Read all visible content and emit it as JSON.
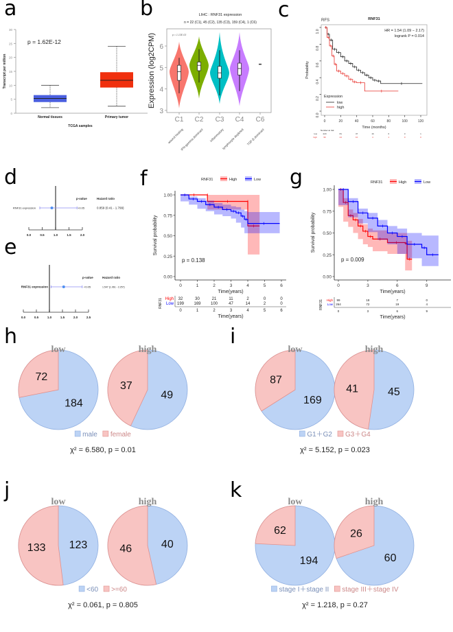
{
  "panel_labels": [
    "a",
    "b",
    "c",
    "d",
    "e",
    "f",
    "g",
    "h",
    "i",
    "j",
    "k"
  ],
  "chart_data": [
    {
      "panel": "a",
      "type": "box",
      "ylabel": "Transcript per million",
      "xlabel": "TCGA samples",
      "ylim": [
        0,
        30
      ],
      "yticks": [
        "0",
        "5",
        "10",
        "15",
        "20",
        "25",
        "30"
      ],
      "annotation": "p = 1.62E-12",
      "categories": [
        "Normal tissues",
        "Primary tumor"
      ],
      "boxes": [
        {
          "min": 2,
          "q1": 4,
          "median": 5.3,
          "q3": 6.5,
          "max": 10,
          "color": "#4a5fe0"
        },
        {
          "min": 2.5,
          "q1": 9.2,
          "median": 11.8,
          "q3": 14.7,
          "max": 24,
          "color": "#f0300e"
        }
      ]
    },
    {
      "panel": "b",
      "type": "violin",
      "title": "LIHC : RNF31 expression",
      "subtitle": "n = 22 (C1), 45 (C2), 135 (C3), 159 (C4), 1 (C6)",
      "annotation": "p = 1.13E-03",
      "ylabel": "Expression (log2CPM)",
      "ylim": [
        2.9,
        6.8
      ],
      "yticks": [
        "3",
        "4",
        "5",
        "6"
      ],
      "categories": [
        "C1",
        "C2",
        "C3",
        "C4",
        "C6"
      ],
      "sublabels": [
        "wound healing",
        "IFN-gamma dominant",
        "inflammatory",
        "lymphocyte depleted",
        "TGF-β dominant"
      ],
      "violins": [
        {
          "min": 3.1,
          "max": 6.2,
          "lo": 3.8,
          "q1": 4.4,
          "median": 4.8,
          "q3": 5.1,
          "hi": 5.45,
          "color": "#f8766d"
        },
        {
          "min": 3.55,
          "max": 6.45,
          "lo": 4.3,
          "q1": 4.85,
          "median": 5.1,
          "q3": 5.25,
          "hi": 5.85,
          "color": "#7cae00"
        },
        {
          "min": 3.3,
          "max": 6.65,
          "lo": 3.7,
          "q1": 4.5,
          "median": 4.75,
          "q3": 5.05,
          "hi": 5.8,
          "color": "#00bfc4"
        },
        {
          "min": 3.2,
          "max": 6.65,
          "lo": 3.9,
          "q1": 4.65,
          "median": 4.95,
          "q3": 5.2,
          "hi": 5.8,
          "color": "#c77cff"
        },
        {
          "min": 5.15,
          "max": 5.15,
          "lo": 5.15,
          "q1": 5.15,
          "median": 5.15,
          "q3": 5.15,
          "hi": 5.15,
          "color": "#333333"
        }
      ]
    },
    {
      "panel": "c",
      "type": "line",
      "subtitle": "RFS",
      "title": "RNF31",
      "xlabel": "Time (months)",
      "ylabel": "Probability",
      "xlim": [
        0,
        120
      ],
      "ylim": [
        0,
        1
      ],
      "xticks": [
        "0",
        "20",
        "40",
        "60",
        "80",
        "100",
        "120"
      ],
      "yticks": [
        "0.0",
        "0.2",
        "0.4",
        "0.6",
        "0.8",
        "1.0"
      ],
      "annotations": [
        "HR = 1.54 (1.09 − 2.17)",
        "logrank P = 0.014"
      ],
      "legend_title": "Expression",
      "series": [
        {
          "name": "low",
          "color": "#222222",
          "x": [
            0,
            3,
            6,
            10,
            15,
            20,
            25,
            30,
            35,
            40,
            45,
            50,
            55,
            60,
            65,
            70,
            122
          ],
          "y": [
            1,
            0.92,
            0.85,
            0.74,
            0.7,
            0.65,
            0.6,
            0.57,
            0.53,
            0.49,
            0.46,
            0.43,
            0.4,
            0.37,
            0.36,
            0.33,
            0.33
          ]
        },
        {
          "name": "high",
          "color": "#e8342f",
          "x": [
            0,
            3,
            6,
            9,
            12,
            15,
            20,
            25,
            30,
            35,
            40,
            50,
            92
          ],
          "y": [
            1,
            0.88,
            0.78,
            0.66,
            0.56,
            0.48,
            0.45,
            0.42,
            0.38,
            0.35,
            0.34,
            0.24,
            0.24
          ]
        }
      ],
      "risk_table": {
        "title": "Number at risk",
        "rows": [
          {
            "label": "low",
            "values": [
              "220",
              "81",
              "37",
              "16",
              "6",
              "3",
              "1"
            ]
          },
          {
            "label": "high",
            "values": [
              "96",
              "24",
              "10",
              "4",
              "1",
              "0",
              "0"
            ]
          }
        ]
      }
    },
    {
      "panel": "d",
      "type": "forest",
      "label": "RNF31 expression",
      "hr": 0.859,
      "ci": [
        0.41,
        1.799
      ],
      "xlim": [
        0,
        2
      ],
      "xticks": [
        "0.0",
        "0.5",
        "1.0",
        "1.5",
        "2.0"
      ],
      "pvalue_header": "p-value",
      "hr_header": "Hazard ratio",
      "pvalue": ">0.05",
      "hr_text": "0.859 (0.41 - 1.799)",
      "color": "#4f8ff0"
    },
    {
      "panel": "e",
      "type": "forest",
      "label": "RNF31 expression",
      "hr": 1.547,
      "ci": [
        1.061,
        2.257
      ],
      "xlim": [
        0,
        2.5
      ],
      "xticks": [
        "0.0",
        "0.5",
        "1.0",
        "1.5",
        "2.0",
        "2.5"
      ],
      "pvalue_header": "p-value",
      "hr_header": "Hazard ratio",
      "pvalue": "<0.05",
      "hr_text": "1.547 (1.061 - 2.257)",
      "color": "#4f8ff0"
    },
    {
      "panel": "f",
      "type": "line",
      "legend_title": "RNF31",
      "xlabel": "Time(years)",
      "ylabel": "Survival probability",
      "xlim": [
        0,
        6
      ],
      "ylim": [
        0,
        1
      ],
      "xticks": [
        "0",
        "1",
        "2",
        "3",
        "4",
        "5",
        "6"
      ],
      "yticks": [
        "0.00",
        "0.25",
        "0.50",
        "0.75",
        "1.00"
      ],
      "annotation": "p = 0.138",
      "series": [
        {
          "name": "High",
          "color": "#ff0000",
          "x": [
            0,
            1.6,
            1.6,
            4,
            4,
            4.7
          ],
          "y": [
            1,
            1,
            0.92,
            0.92,
            0.62,
            0.62
          ],
          "lower": [
            1,
            1,
            0.82,
            0.82,
            0.27,
            0.27
          ],
          "upper": [
            1,
            1,
            1,
            1,
            1,
            1
          ]
        },
        {
          "name": "Low",
          "color": "#0000ff",
          "x": [
            0,
            0.5,
            1,
            1.5,
            2,
            2.5,
            3,
            3.3,
            3.6,
            3.8,
            4,
            5.9
          ],
          "y": [
            1,
            0.95,
            0.92,
            0.88,
            0.85,
            0.82,
            0.8,
            0.78,
            0.74,
            0.7,
            0.65,
            0.65
          ],
          "lower": [
            1,
            0.92,
            0.88,
            0.83,
            0.8,
            0.76,
            0.74,
            0.71,
            0.66,
            0.6,
            0.53,
            0.53
          ],
          "upper": [
            1,
            0.98,
            0.96,
            0.93,
            0.9,
            0.88,
            0.86,
            0.85,
            0.82,
            0.8,
            0.79,
            0.79
          ]
        }
      ],
      "risk_table": {
        "title": "RNF31",
        "rows": [
          {
            "label": "High",
            "values": [
              "32",
              "30",
              "21",
              "11",
              "2",
              "0",
              "0"
            ]
          },
          {
            "label": "Low",
            "values": [
              "199",
              "169",
              "100",
              "47",
              "14",
              "2",
              "0"
            ]
          }
        ],
        "xlabel": "Time(years)"
      }
    },
    {
      "panel": "g",
      "type": "line",
      "legend_title": "RNF31",
      "xlabel": "Time(years)",
      "ylabel": "Survival probability",
      "xlim": [
        0,
        10
      ],
      "ylim": [
        0,
        1
      ],
      "xticks": [
        "0",
        "3",
        "6",
        "9"
      ],
      "yticks": [
        "0.00",
        "0.25",
        "0.50",
        "0.75",
        "1.00"
      ],
      "annotation": "p = 0.009",
      "series": [
        {
          "name": "High",
          "color": "#ff0000",
          "x": [
            0,
            0.5,
            1,
            1.5,
            2,
            2.5,
            3,
            3.5,
            5,
            6.8,
            7,
            7.5
          ],
          "y": [
            1,
            0.85,
            0.7,
            0.65,
            0.58,
            0.52,
            0.46,
            0.43,
            0.39,
            0.38,
            0.2,
            0.2
          ],
          "lower": [
            1,
            0.8,
            0.63,
            0.57,
            0.5,
            0.43,
            0.37,
            0.34,
            0.29,
            0.26,
            0.07,
            0.07
          ],
          "upper": [
            1,
            0.9,
            0.77,
            0.73,
            0.66,
            0.6,
            0.55,
            0.53,
            0.5,
            0.5,
            0.41,
            0.41
          ]
        },
        {
          "name": "Low",
          "color": "#0000ff",
          "x": [
            0,
            1,
            2,
            3,
            4,
            5,
            6,
            7,
            8.5,
            9,
            10.2
          ],
          "y": [
            1,
            0.86,
            0.73,
            0.67,
            0.58,
            0.5,
            0.46,
            0.37,
            0.33,
            0.25,
            0.25
          ],
          "lower": [
            1,
            0.82,
            0.68,
            0.61,
            0.51,
            0.42,
            0.37,
            0.26,
            0.21,
            0.12,
            0.12
          ],
          "upper": [
            1,
            0.9,
            0.78,
            0.73,
            0.65,
            0.58,
            0.55,
            0.5,
            0.47,
            0.47,
            0.47
          ]
        }
      ],
      "risk_table": {
        "title": "RNF31",
        "rows": [
          {
            "label": "High",
            "values": [
              "99",
              "18",
              "7",
              "0"
            ]
          },
          {
            "label": "Low",
            "values": [
              "264",
              "72",
              "19",
              "4"
            ]
          }
        ],
        "xlabel": "Time(years)"
      }
    },
    {
      "panel": "h",
      "type": "pie",
      "groups": [
        {
          "title": "low",
          "values": [
            184,
            72
          ]
        },
        {
          "title": "high",
          "values": [
            49,
            37
          ]
        }
      ],
      "legend": [
        "male",
        "female"
      ],
      "stat": "χ² = 6.580, p = 0.01"
    },
    {
      "panel": "i",
      "type": "pie",
      "groups": [
        {
          "title": "low",
          "values": [
            169,
            87
          ]
        },
        {
          "title": "high",
          "values": [
            45,
            41
          ]
        }
      ],
      "legend": [
        "G1＋G2",
        "G3＋G4"
      ],
      "stat": "χ² = 5.152, p = 0.023"
    },
    {
      "panel": "j",
      "type": "pie",
      "groups": [
        {
          "title": "low",
          "values": [
            123,
            133
          ]
        },
        {
          "title": "high",
          "values": [
            40,
            46
          ]
        }
      ],
      "legend": [
        "<60",
        ">=60"
      ],
      "stat": "χ² = 0.061, p = 0.805"
    },
    {
      "panel": "k",
      "type": "pie",
      "groups": [
        {
          "title": "low",
          "values": [
            194,
            62
          ]
        },
        {
          "title": "high",
          "values": [
            60,
            26
          ]
        }
      ],
      "legend": [
        "stage I＋stage II",
        "stage III＋stage IV"
      ],
      "stat": "χ² = 1.218, p = 0.27"
    }
  ],
  "colors": {
    "pie_blue": "#bcd3f5",
    "pie_red": "#f8c4c2",
    "pie_stroke_blue": "#8faee0",
    "pie_stroke_red": "#e0908c"
  }
}
